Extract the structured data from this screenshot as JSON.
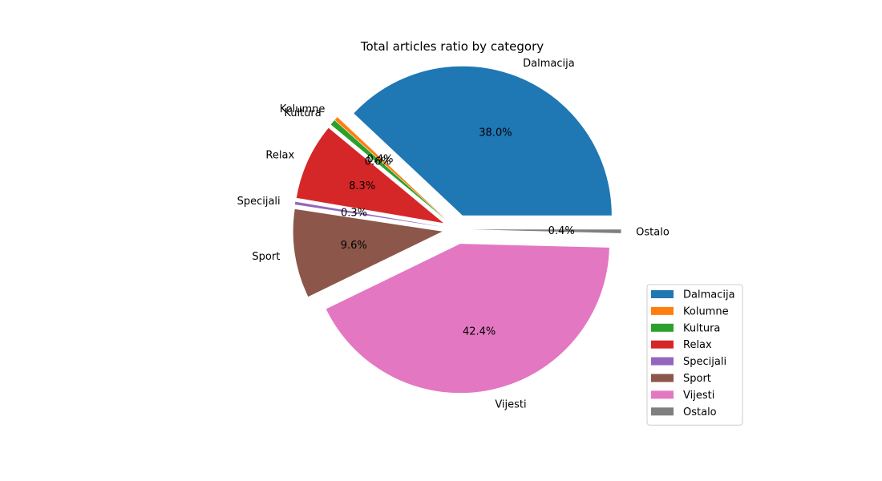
{
  "chart_data": {
    "type": "pie",
    "title": "Total articles ratio by category",
    "legend_position": "lower-right",
    "slices": [
      {
        "label": "Dalmacija",
        "percent": 38.0,
        "percent_label": "38.0%",
        "color": "#1f77b4",
        "exploded": true
      },
      {
        "label": "Kolumne",
        "percent": 0.4,
        "percent_label": "0.4%",
        "color": "#ff7f0e",
        "exploded": true
      },
      {
        "label": "Kultura",
        "percent": 0.6,
        "percent_label": "0.6%",
        "color": "#2ca02c",
        "exploded": true
      },
      {
        "label": "Relax",
        "percent": 8.3,
        "percent_label": "8.3%",
        "color": "#d62728",
        "exploded": true
      },
      {
        "label": "Specijali",
        "percent": 0.3,
        "percent_label": "0.3%",
        "color": "#9467bd",
        "exploded": true
      },
      {
        "label": "Sport",
        "percent": 9.6,
        "percent_label": "9.6%",
        "color": "#8c564b",
        "exploded": true
      },
      {
        "label": "Vijesti",
        "percent": 42.4,
        "percent_label": "42.4%",
        "color": "#e377c2",
        "exploded": true
      },
      {
        "label": "Ostalo",
        "percent": 0.4,
        "percent_label": "0.4%",
        "color": "#7f7f7f",
        "exploded": true
      }
    ]
  }
}
